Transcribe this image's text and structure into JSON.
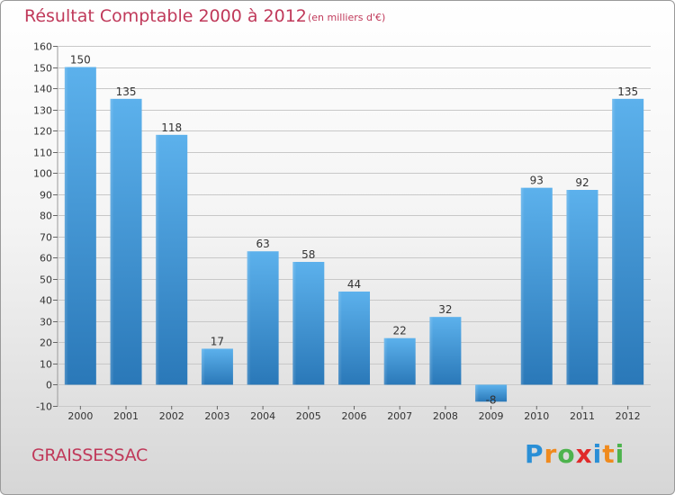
{
  "header": {
    "title": "Résultat Comptable 2000 à 2012",
    "subtitle": "(en milliers d'€)"
  },
  "footer": {
    "commune": "GRAISSESSAC"
  },
  "logo": {
    "text": "Proxiti",
    "letters": [
      {
        "ch": "P",
        "color": "#2a8fd6"
      },
      {
        "ch": "r",
        "color": "#f08a1d"
      },
      {
        "ch": "o",
        "color": "#4db34d"
      },
      {
        "ch": "x",
        "color": "#e02a2a"
      },
      {
        "ch": "i",
        "color": "#2a8fd6"
      },
      {
        "ch": "t",
        "color": "#f08a1d"
      },
      {
        "ch": "i",
        "color": "#4db34d"
      }
    ]
  },
  "colors": {
    "bar_light": "#5aaee8",
    "bar_dark": "#2a78b8",
    "accent": "#c0395a",
    "grid": "#c8c8c8",
    "axis_text": "#333333"
  },
  "chart_data": {
    "type": "bar",
    "title": "Résultat Comptable 2000 à 2012",
    "subtitle": "(en milliers d'€)",
    "xlabel": "",
    "ylabel": "",
    "categories": [
      "2000",
      "2001",
      "2002",
      "2003",
      "2004",
      "2005",
      "2006",
      "2007",
      "2008",
      "2009",
      "2010",
      "2011",
      "2012"
    ],
    "values": [
      150,
      135,
      118,
      17,
      63,
      58,
      44,
      22,
      32,
      -8,
      93,
      92,
      135
    ],
    "value_labels": [
      "150",
      "135",
      "118",
      "17",
      "63",
      "58",
      "44",
      "22",
      "32",
      "-8",
      "93",
      "92",
      "135"
    ],
    "ylim": [
      -10,
      160
    ],
    "yticks": [
      -10,
      0,
      10,
      20,
      30,
      40,
      50,
      60,
      70,
      80,
      90,
      100,
      110,
      120,
      130,
      140,
      150,
      160
    ],
    "grid": true,
    "legend": "none"
  }
}
